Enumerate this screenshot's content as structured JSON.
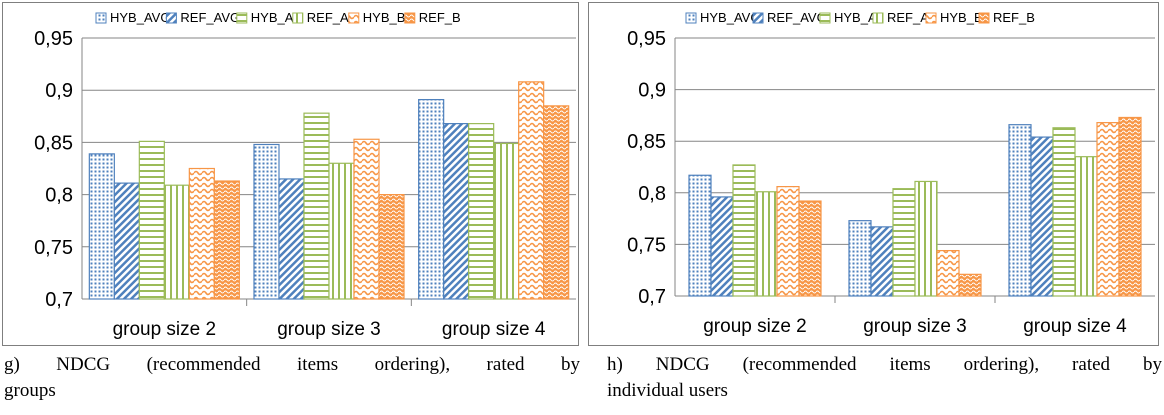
{
  "chart_data": [
    {
      "type": "bar",
      "title": "",
      "xlabel": "",
      "ylabel": "",
      "categories": [
        "group size 2",
        "group size 3",
        "group size 4"
      ],
      "ylim": [
        0.7,
        0.95
      ],
      "yticks": [
        "0,7",
        "0,75",
        "0,8",
        "0,85",
        "0,9",
        "0,95"
      ],
      "legend_position": "top",
      "grid": true,
      "series": [
        {
          "name": "HYB_AVG",
          "values": [
            0.839,
            0.848,
            0.891
          ],
          "color": "#4f81bd",
          "pattern": "dots"
        },
        {
          "name": "REF_AVG",
          "values": [
            0.811,
            0.815,
            0.868
          ],
          "color": "#4f81bd",
          "pattern": "diag"
        },
        {
          "name": "HYB_A",
          "values": [
            0.851,
            0.878,
            0.868
          ],
          "color": "#9bbb59",
          "pattern": "hlines"
        },
        {
          "name": "REF_A",
          "values": [
            0.809,
            0.83,
            0.849
          ],
          "color": "#9bbb59",
          "pattern": "vlines"
        },
        {
          "name": "HYB_B",
          "values": [
            0.825,
            0.853,
            0.908
          ],
          "color": "#f79646",
          "pattern": "waves"
        },
        {
          "name": "REF_B",
          "values": [
            0.813,
            0.8,
            0.885
          ],
          "color": "#f79646",
          "pattern": "dense"
        }
      ]
    },
    {
      "type": "bar",
      "title": "",
      "xlabel": "",
      "ylabel": "",
      "categories": [
        "group size 2",
        "group size 3",
        "group size 4"
      ],
      "ylim": [
        0.7,
        0.95
      ],
      "yticks": [
        "0,7",
        "0,75",
        "0,8",
        "0,85",
        "0,9",
        "0,95"
      ],
      "legend_position": "top",
      "grid": true,
      "series": [
        {
          "name": "HYB_AVG",
          "values": [
            0.817,
            0.773,
            0.866
          ],
          "color": "#4f81bd",
          "pattern": "dots"
        },
        {
          "name": "REF_AVG",
          "values": [
            0.796,
            0.767,
            0.854
          ],
          "color": "#4f81bd",
          "pattern": "diag"
        },
        {
          "name": "HYB_A",
          "values": [
            0.827,
            0.804,
            0.863
          ],
          "color": "#9bbb59",
          "pattern": "hlines"
        },
        {
          "name": "REF_A",
          "values": [
            0.801,
            0.811,
            0.835
          ],
          "color": "#9bbb59",
          "pattern": "vlines"
        },
        {
          "name": "HYB_B",
          "values": [
            0.806,
            0.744,
            0.868
          ],
          "color": "#f79646",
          "pattern": "waves"
        },
        {
          "name": "REF_B",
          "values": [
            0.792,
            0.721,
            0.873
          ],
          "color": "#f79646",
          "pattern": "dense"
        }
      ]
    }
  ],
  "captions": {
    "g": {
      "line1": "g) NDCG (recommended items ordering), rated by",
      "line2": "groups"
    },
    "h": {
      "line1": "h) NDCG (recommended items ordering), rated by",
      "line2": "individual users"
    }
  }
}
